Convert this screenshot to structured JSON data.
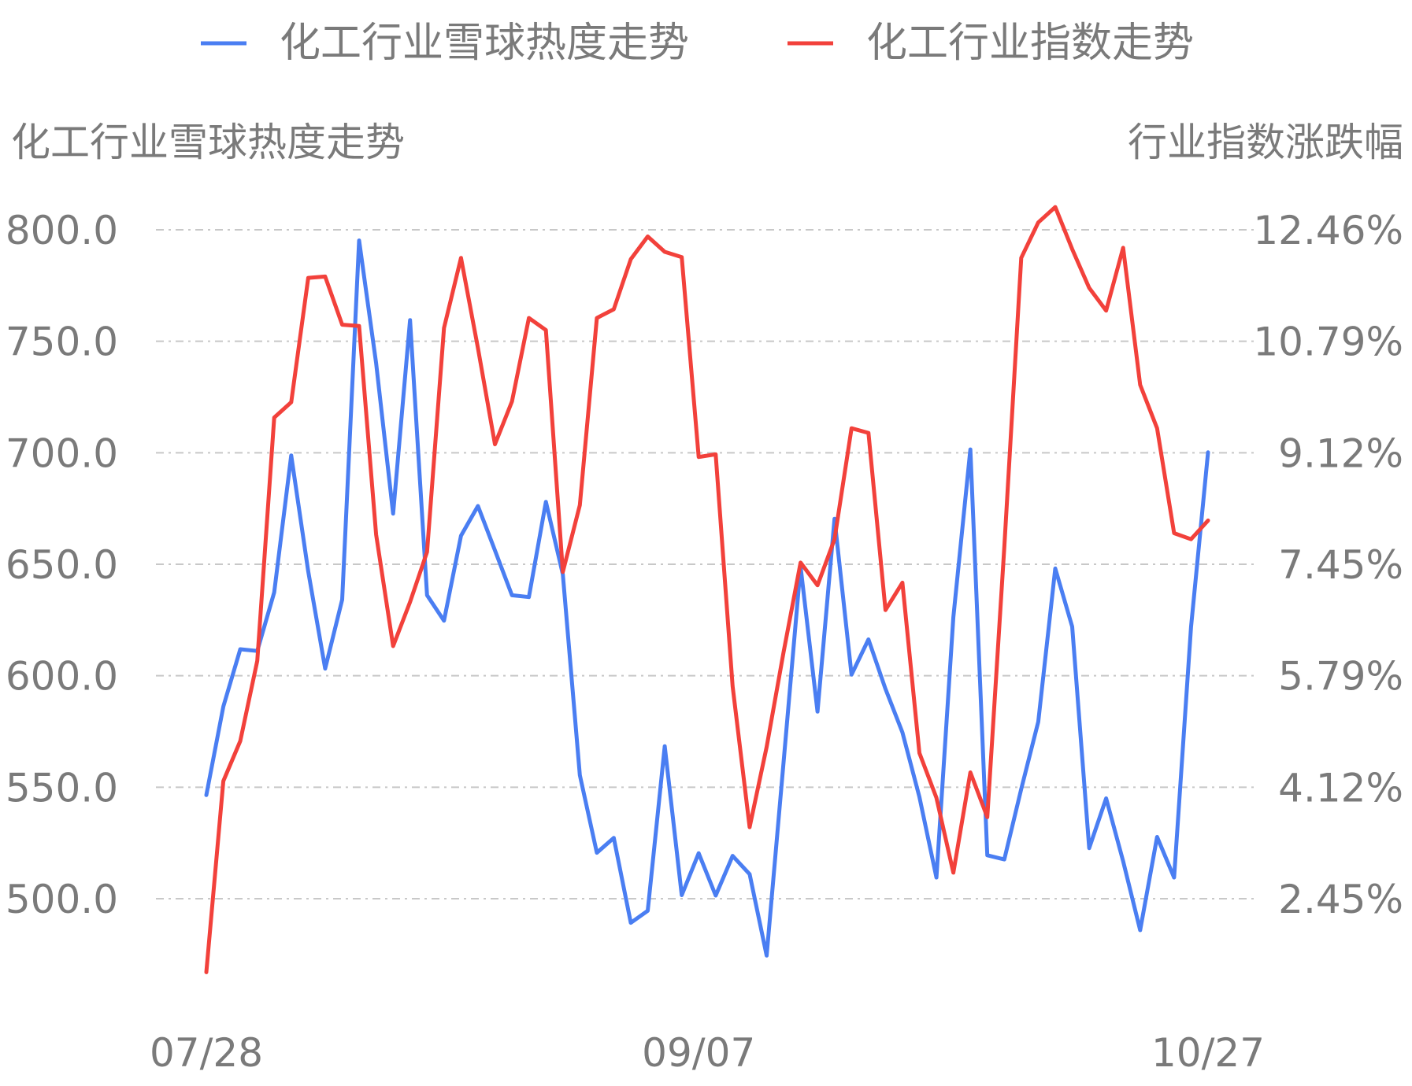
{
  "chart_data": {
    "type": "line",
    "legend": {
      "position": "top-center",
      "items": [
        {
          "label": "化工行业雪球热度走势",
          "color": "#4a7ef2"
        },
        {
          "label": "化工行业指数走势",
          "color": "#f2413b"
        }
      ]
    },
    "left_axis": {
      "title": "化工行业雪球热度走势",
      "ticks": [
        "800.0",
        "750.0",
        "700.0",
        "650.0",
        "600.0",
        "550.0",
        "500.0"
      ],
      "range": [
        500,
        800
      ]
    },
    "right_axis": {
      "title": "行业指数涨跌幅",
      "ticks": [
        "12.46%",
        "10.79%",
        "9.12%",
        "7.45%",
        "5.79%",
        "4.12%",
        "2.45%"
      ],
      "range": [
        2.45,
        12.46
      ]
    },
    "x_axis": {
      "tick_labels": [
        {
          "label": "07/28",
          "index": 0
        },
        {
          "label": "09/07",
          "index": 29
        },
        {
          "label": "10/27",
          "index": 59
        }
      ],
      "count": 60
    },
    "grid": "horizontal-dashed",
    "series": [
      {
        "name": "化工行业雪球热度走势",
        "axis": "left",
        "color": "#4a7ef2",
        "values": [
          546.5,
          586.2,
          611.9,
          611.1,
          637.4,
          698.8,
          646.8,
          603.2,
          634.1,
          795.2,
          740.2,
          672.7,
          759.5,
          636.1,
          624.7,
          662.8,
          676.1,
          656.2,
          636.1,
          635.3,
          678.0,
          645.5,
          555.4,
          520.6,
          527.3,
          489.2,
          494.6,
          568.4,
          501.6,
          520.4,
          501.4,
          519.2,
          511.0,
          474.5,
          561.2,
          648.9,
          583.9,
          670.4,
          600.5,
          616.3,
          594.1,
          574.6,
          545.6,
          509.5,
          626.3,
          701.5,
          519.5,
          517.6,
          549.2,
          579.3,
          648.1,
          622.0,
          522.7,
          545.0,
          516.8,
          485.9,
          527.7,
          509.5,
          621.8,
          700.2
        ]
      },
      {
        "name": "化工行业指数走势",
        "axis": "right",
        "color": "#f2413b",
        "values": [
          1.35,
          4.21,
          4.81,
          6.01,
          9.65,
          9.88,
          11.74,
          11.76,
          11.04,
          11.02,
          7.9,
          6.23,
          6.89,
          7.64,
          10.99,
          12.04,
          10.69,
          9.25,
          9.89,
          11.14,
          10.96,
          7.34,
          8.34,
          11.14,
          11.27,
          12.02,
          12.36,
          12.13,
          12.05,
          9.06,
          9.1,
          5.63,
          3.52,
          4.72,
          6.14,
          7.48,
          7.14,
          7.83,
          9.49,
          9.42,
          6.77,
          7.18,
          4.63,
          3.96,
          2.84,
          4.34,
          3.67,
          7.71,
          12.04,
          12.57,
          12.8,
          12.17,
          11.59,
          11.25,
          12.19,
          10.14,
          9.49,
          7.92,
          7.83,
          8.11
        ]
      }
    ]
  }
}
